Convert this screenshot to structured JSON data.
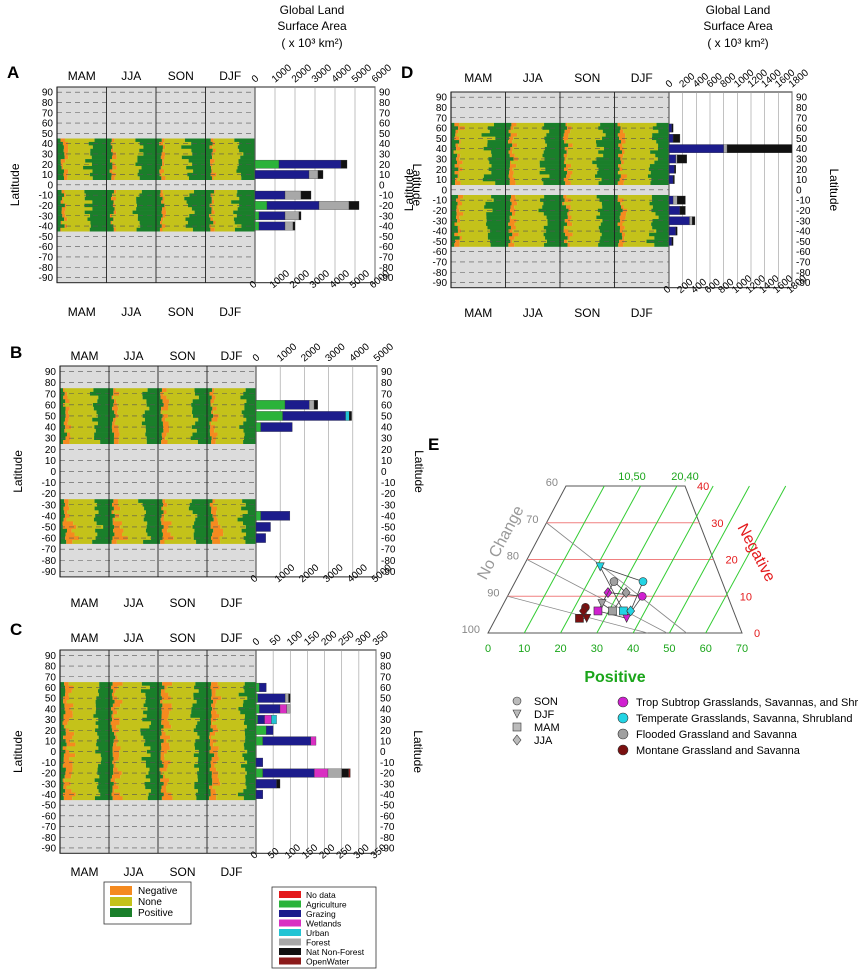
{
  "figure": {
    "surface_area_title": [
      "Global Land",
      "Surface Area",
      "( x 10³ km²)"
    ],
    "season_labels": [
      "MAM",
      "JJA",
      "SON",
      "DJF"
    ],
    "latitude_label": "Latitude",
    "latitude_ticks": [
      90,
      80,
      70,
      60,
      50,
      40,
      30,
      20,
      10,
      0,
      -10,
      -20,
      -30,
      -40,
      -50,
      -60,
      -70,
      -80,
      -90
    ]
  },
  "legend_change": {
    "items": [
      {
        "label": "Negative",
        "color": "#f58a1f"
      },
      {
        "label": "None",
        "color": "#c4c21a"
      },
      {
        "label": "Positive",
        "color": "#1a7f2a"
      }
    ]
  },
  "legend_landuse": {
    "items": [
      {
        "label": "No data",
        "color": "#e41a1c"
      },
      {
        "label": "Agriculture",
        "color": "#2bb33a"
      },
      {
        "label": "Grazing",
        "color": "#1c1c8c"
      },
      {
        "label": "Wetlands",
        "color": "#d92fc2"
      },
      {
        "label": "Urban",
        "color": "#22c4d4"
      },
      {
        "label": "Forest",
        "color": "#a8a8a8"
      },
      {
        "label": "Nat Non-Forest",
        "color": "#111111"
      },
      {
        "label": "OpenWater",
        "color": "#8b1a1a"
      }
    ]
  },
  "chart_data": [
    {
      "panel": "A",
      "type": "bar",
      "orientation": "horizontal-stacked",
      "title": "Global Land Surface Area ( x 10³ km²)",
      "ylabel": "Latitude",
      "xlim": [
        0,
        6000
      ],
      "xticks": [
        0,
        1000,
        2000,
        3000,
        4000,
        5000,
        6000
      ],
      "bands_with_data": [
        [
          10,
          40
        ],
        [
          -10,
          -40
        ]
      ],
      "latitudes": [
        40,
        30,
        20,
        10,
        -10,
        -20,
        -30,
        -40
      ],
      "series": [
        {
          "name": "Agriculture",
          "values": [
            0,
            0,
            1200,
            0,
            0,
            600,
            200,
            200
          ]
        },
        {
          "name": "Grazing",
          "values": [
            0,
            0,
            3100,
            2700,
            1500,
            2600,
            1300,
            1300
          ]
        },
        {
          "name": "Forest",
          "values": [
            0,
            0,
            0,
            450,
            800,
            1500,
            700,
            400
          ]
        },
        {
          "name": "Nat Non-Forest",
          "values": [
            0,
            0,
            300,
            250,
            500,
            500,
            100,
            100
          ]
        }
      ],
      "season_fraction_proxy": {
        "negative": 0.04,
        "none": 0.48,
        "positive": 0.48
      }
    },
    {
      "panel": "B",
      "type": "bar",
      "orientation": "horizontal-stacked",
      "title": "Global Land Surface Area ( x 10³ km²)",
      "ylabel": "Latitude",
      "xlim": [
        0,
        5000
      ],
      "xticks": [
        0,
        1000,
        2000,
        3000,
        4000,
        5000
      ],
      "bands_with_data": [
        [
          30,
          70
        ],
        [
          -30,
          -60
        ]
      ],
      "latitudes": [
        70,
        60,
        50,
        40,
        30,
        -30,
        -40,
        -50,
        -60
      ],
      "series": [
        {
          "name": "Agriculture",
          "values": [
            0,
            1200,
            1100,
            200,
            0,
            0,
            200,
            0,
            0
          ]
        },
        {
          "name": "Grazing",
          "values": [
            0,
            1000,
            2600,
            1300,
            0,
            0,
            1200,
            600,
            400
          ]
        },
        {
          "name": "Urban",
          "values": [
            0,
            0,
            150,
            0,
            0,
            0,
            0,
            0,
            0
          ]
        },
        {
          "name": "Forest",
          "values": [
            0,
            200,
            0,
            0,
            0,
            0,
            0,
            0,
            0
          ]
        },
        {
          "name": "Nat Non-Forest",
          "values": [
            0,
            150,
            100,
            0,
            0,
            0,
            0,
            0,
            0
          ]
        }
      ],
      "season_fraction_proxy": {
        "negative": 0.06,
        "none": 0.57,
        "positive": 0.37
      }
    },
    {
      "panel": "C",
      "type": "bar",
      "orientation": "horizontal-stacked",
      "title": "Global Land Surface Area ( x 10³ km²)",
      "ylabel": "Latitude",
      "xlim": [
        0,
        350
      ],
      "xticks": [
        0,
        50,
        100,
        150,
        200,
        250,
        300,
        350
      ],
      "bands_with_data": [
        [
          0,
          60
        ],
        [
          -10,
          -40
        ]
      ],
      "latitudes": [
        60,
        50,
        40,
        30,
        20,
        10,
        0,
        -10,
        -20,
        -30,
        -40
      ],
      "series": [
        {
          "name": "Agriculture",
          "values": [
            10,
            5,
            10,
            5,
            30,
            20,
            0,
            0,
            20,
            0,
            0
          ]
        },
        {
          "name": "Grazing",
          "values": [
            20,
            80,
            60,
            20,
            20,
            140,
            0,
            20,
            150,
            60,
            20
          ]
        },
        {
          "name": "Wetlands",
          "values": [
            0,
            0,
            20,
            20,
            0,
            15,
            0,
            0,
            40,
            0,
            0
          ]
        },
        {
          "name": "Urban",
          "values": [
            0,
            0,
            0,
            15,
            0,
            0,
            0,
            0,
            0,
            0,
            0
          ]
        },
        {
          "name": "Forest",
          "values": [
            0,
            10,
            10,
            0,
            0,
            0,
            0,
            0,
            40,
            0,
            0
          ]
        },
        {
          "name": "Nat Non-Forest",
          "values": [
            0,
            5,
            0,
            0,
            0,
            0,
            0,
            0,
            20,
            10,
            0
          ]
        },
        {
          "name": "OpenWater",
          "values": [
            0,
            0,
            0,
            0,
            0,
            0,
            0,
            0,
            5,
            0,
            0
          ]
        }
      ],
      "season_fraction_proxy": {
        "negative": 0.09,
        "none": 0.58,
        "positive": 0.33
      }
    },
    {
      "panel": "D",
      "type": "bar",
      "orientation": "horizontal-stacked",
      "title": "Global Land Surface Area ( x 10³ km²)",
      "ylabel": "Latitude",
      "xlim": [
        0,
        1800
      ],
      "xticks": [
        0,
        200,
        400,
        600,
        800,
        1000,
        1200,
        1400,
        1600,
        1800
      ],
      "bands_with_data": [
        [
          10,
          60
        ],
        [
          -10,
          -50
        ]
      ],
      "latitudes": [
        60,
        50,
        40,
        30,
        20,
        10,
        -10,
        -20,
        -30,
        -40,
        -50
      ],
      "series": [
        {
          "name": "Grazing",
          "values": [
            40,
            60,
            800,
            100,
            80,
            60,
            60,
            160,
            300,
            100,
            40
          ]
        },
        {
          "name": "Forest",
          "values": [
            0,
            0,
            50,
            20,
            0,
            0,
            60,
            0,
            40,
            0,
            0
          ]
        },
        {
          "name": "Nat Non-Forest",
          "values": [
            20,
            100,
            950,
            140,
            20,
            20,
            120,
            80,
            40,
            20,
            20
          ]
        }
      ],
      "season_fraction_proxy": {
        "negative": 0.05,
        "none": 0.55,
        "positive": 0.4
      }
    },
    {
      "panel": "E",
      "type": "scatter",
      "subtype": "ternary",
      "axis_labels": {
        "left": "No Change",
        "right": "Negative",
        "bottom": "Positive"
      },
      "bottom_ticks": [
        0,
        10,
        20,
        30,
        40,
        50,
        60,
        70
      ],
      "right_ticks": [
        0,
        10,
        20,
        30,
        40
      ],
      "left_ticks": [
        100,
        90,
        80,
        70,
        60
      ],
      "top_labels": [
        "10,50",
        "20,40"
      ],
      "season_markers": [
        {
          "season": "SON",
          "marker": "circle"
        },
        {
          "season": "DJF",
          "marker": "triangle-down"
        },
        {
          "season": "MAM",
          "marker": "square"
        },
        {
          "season": "JJA",
          "marker": "diamond"
        }
      ],
      "series": [
        {
          "name": "Trop Subtrop Grasslands, Savannas, and Shrublands",
          "color": "#d020d0",
          "points": [
            {
              "season": "SON",
              "positive": 37,
              "negative": 10,
              "no_change": 53
            },
            {
              "season": "DJF",
              "positive": 36,
              "negative": 4,
              "no_change": 60
            },
            {
              "season": "MAM",
              "positive": 27,
              "negative": 6,
              "no_change": 67
            },
            {
              "season": "JJA",
              "positive": 27,
              "negative": 11,
              "no_change": 62
            }
          ]
        },
        {
          "name": "Temperate Grasslands, Savanna, Shrubland",
          "color": "#22d4e4",
          "points": [
            {
              "season": "SON",
              "positive": 35,
              "negative": 14,
              "no_change": 51
            },
            {
              "season": "DJF",
              "positive": 21,
              "negative": 18,
              "no_change": 61
            },
            {
              "season": "MAM",
              "positive": 34,
              "negative": 6,
              "no_change": 60
            },
            {
              "season": "JJA",
              "positive": 36,
              "negative": 6,
              "no_change": 58
            }
          ]
        },
        {
          "name": "Flooded Grassland and Savanna",
          "color": "#a0a0a0",
          "points": [
            {
              "season": "SON",
              "positive": 27,
              "negative": 14,
              "no_change": 59
            },
            {
              "season": "DJF",
              "positive": 27,
              "negative": 8,
              "no_change": 65
            },
            {
              "season": "MAM",
              "positive": 31,
              "negative": 6,
              "no_change": 63
            },
            {
              "season": "JJA",
              "positive": 32,
              "negative": 11,
              "no_change": 57
            }
          ]
        },
        {
          "name": "Montane Grassland and Savanna",
          "color": "#7a1010",
          "points": [
            {
              "season": "SON",
              "positive": 23,
              "negative": 7,
              "no_change": 70
            },
            {
              "season": "DJF",
              "positive": 25,
              "negative": 4,
              "no_change": 71
            },
            {
              "season": "MAM",
              "positive": 23,
              "negative": 4,
              "no_change": 73
            },
            {
              "season": "JJA",
              "positive": 23,
              "negative": 6,
              "no_change": 71
            }
          ]
        }
      ]
    }
  ]
}
